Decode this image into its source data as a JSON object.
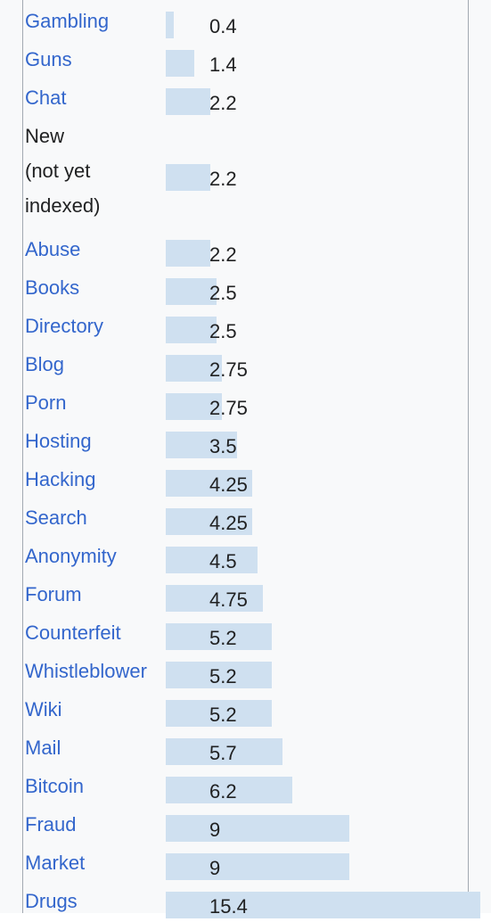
{
  "chart_data": {
    "type": "bar",
    "orientation": "horizontal",
    "categories": [
      "Gambling",
      "Guns",
      "Chat",
      "New (not yet indexed)",
      "Abuse",
      "Books",
      "Directory",
      "Blog",
      "Porn",
      "Hosting",
      "Hacking",
      "Search",
      "Anonymity",
      "Forum",
      "Counterfeit",
      "Whistleblower",
      "Wiki",
      "Mail",
      "Bitcoin",
      "Fraud",
      "Market",
      "Drugs"
    ],
    "category_lines": [
      [
        "Gambling"
      ],
      [
        "Guns"
      ],
      [
        "Chat"
      ],
      [
        "New",
        "(not yet",
        "indexed)"
      ],
      [
        "Abuse"
      ],
      [
        "Books"
      ],
      [
        "Directory"
      ],
      [
        "Blog"
      ],
      [
        "Porn"
      ],
      [
        "Hosting"
      ],
      [
        "Hacking"
      ],
      [
        "Search"
      ],
      [
        "Anonymity"
      ],
      [
        "Forum"
      ],
      [
        "Counterfeit"
      ],
      [
        "Whistleblower"
      ],
      [
        "Wiki"
      ],
      [
        "Mail"
      ],
      [
        "Bitcoin"
      ],
      [
        "Fraud"
      ],
      [
        "Market"
      ],
      [
        "Drugs"
      ]
    ],
    "linked": [
      true,
      true,
      true,
      false,
      true,
      true,
      true,
      true,
      true,
      true,
      true,
      true,
      true,
      true,
      true,
      true,
      true,
      true,
      true,
      true,
      true,
      true
    ],
    "values": [
      0.4,
      1.4,
      2.2,
      2.2,
      2.2,
      2.5,
      2.5,
      2.75,
      2.75,
      3.5,
      4.25,
      4.25,
      4.5,
      4.75,
      5.2,
      5.2,
      5.2,
      5.7,
      6.2,
      9,
      9,
      15.4
    ],
    "value_labels": [
      "0.4",
      "1.4",
      "2.2",
      "2.2",
      "2.2",
      "2.5",
      "2.5",
      "2.75",
      "2.75",
      "3.5",
      "4.25",
      "4.25",
      "4.5",
      "4.75",
      "5.2",
      "5.2",
      "5.2",
      "5.7",
      "6.2",
      "9",
      "9",
      "15.4"
    ],
    "title": "",
    "xlabel": "",
    "ylabel": "",
    "xlim": [
      0,
      15.4
    ],
    "grid": false,
    "legend": "none",
    "colors": {
      "bar": "#cfe0f0",
      "link": "#3366cc",
      "text": "#202122",
      "frame": "#a2a9b1",
      "background": "#f8f9fa"
    }
  }
}
